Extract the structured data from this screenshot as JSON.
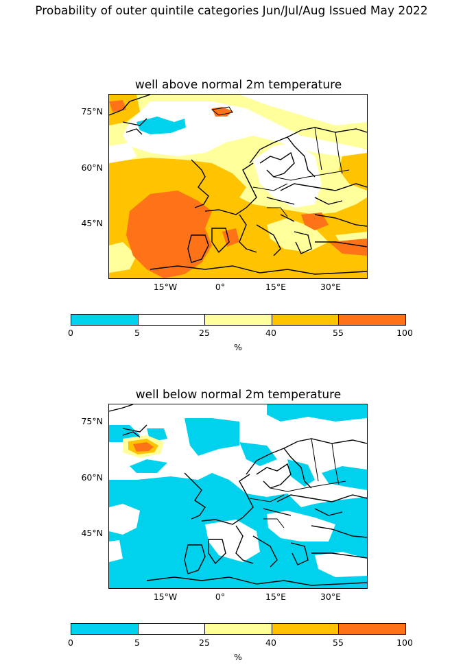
{
  "suptitle": "Probability of outer quintile categories Jun/Jul/Aug Issued May 2022",
  "colors": {
    "cat_0_5": "#00d2ed",
    "cat_5_25": "#ffffff",
    "cat_25_40": "#ffff9b",
    "cat_40_55": "#ffc300",
    "cat_55_100": "#ff7318",
    "coast": "#000000"
  },
  "panels": [
    {
      "title": "well above normal 2m temperature",
      "lat_labels": [
        "75°N",
        "60°N",
        "45°N"
      ],
      "lon_labels": [
        "15°W",
        "0°",
        "15°E",
        "30°E"
      ],
      "colorbar": {
        "ticks": [
          "0",
          "5",
          "25",
          "40",
          "55",
          "100"
        ],
        "unit": "%"
      }
    },
    {
      "title": "well below normal 2m temperature",
      "lat_labels": [
        "75°N",
        "60°N",
        "45°N"
      ],
      "lon_labels": [
        "15°W",
        "0°",
        "15°E",
        "30°E"
      ],
      "colorbar": {
        "ticks": [
          "0",
          "5",
          "25",
          "40",
          "55",
          "100"
        ],
        "unit": "%"
      }
    }
  ]
}
